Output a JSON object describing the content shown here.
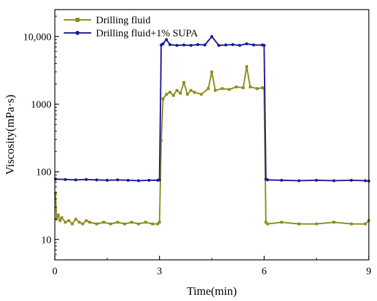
{
  "chart_data": {
    "type": "line",
    "title": "",
    "xlabel": "Time(min)",
    "ylabel": "Viscosity(mPa·s)",
    "xlim": [
      0,
      9
    ],
    "ylim": [
      5,
      25000
    ],
    "yscale": "log",
    "grid": false,
    "legend_position": "top-left",
    "x_ticks": [
      0,
      3,
      6,
      9
    ],
    "x_tick_labels": [
      "0",
      "3",
      "6",
      "9"
    ],
    "y_ticks": [
      10,
      100,
      1000,
      10000
    ],
    "y_tick_labels": [
      "10",
      "100",
      "1000",
      "10,000"
    ],
    "series": [
      {
        "name": "Drilling fluid",
        "color": "#8c8c1c",
        "marker": "square",
        "x": [
          0.02,
          0.05,
          0.1,
          0.15,
          0.2,
          0.3,
          0.4,
          0.5,
          0.6,
          0.7,
          0.8,
          0.9,
          1.0,
          1.2,
          1.4,
          1.6,
          1.8,
          2.0,
          2.2,
          2.4,
          2.6,
          2.8,
          2.95,
          3.0,
          3.05,
          3.1,
          3.2,
          3.3,
          3.4,
          3.5,
          3.6,
          3.7,
          3.8,
          3.9,
          4.0,
          4.2,
          4.4,
          4.5,
          4.6,
          4.8,
          5.0,
          5.2,
          5.4,
          5.5,
          5.6,
          5.8,
          5.95,
          6.0,
          6.05,
          6.1,
          6.5,
          7.0,
          7.5,
          8.0,
          8.5,
          8.9,
          9.0
        ],
        "values": [
          48,
          20,
          23,
          19,
          21,
          18,
          19,
          17,
          20,
          18,
          17,
          19,
          18,
          17,
          18,
          17,
          18,
          17,
          18,
          17,
          18,
          17,
          17,
          18,
          290,
          1200,
          1400,
          1500,
          1350,
          1600,
          1450,
          2100,
          1400,
          1600,
          1500,
          1400,
          1700,
          3000,
          1600,
          1700,
          1650,
          1800,
          1750,
          3600,
          1800,
          1700,
          1750,
          1700,
          18,
          17,
          18,
          17,
          17,
          18,
          17,
          17,
          19
        ]
      },
      {
        "name": "Drilling fluid+1% SUPA",
        "color": "#1c1c96",
        "marker": "circle",
        "x": [
          0.02,
          0.3,
          0.6,
          0.9,
          1.2,
          1.5,
          1.8,
          2.1,
          2.4,
          2.7,
          2.95,
          3.0,
          3.05,
          3.1,
          3.2,
          3.3,
          3.5,
          3.7,
          3.9,
          4.1,
          4.3,
          4.5,
          4.7,
          4.9,
          5.1,
          5.3,
          5.5,
          5.7,
          5.95,
          6.0,
          6.05,
          6.1,
          6.5,
          7.0,
          7.5,
          8.0,
          8.5,
          8.9,
          9.0
        ],
        "values": [
          78,
          77,
          76,
          77,
          76,
          75,
          76,
          75,
          74,
          75,
          75,
          76,
          7500,
          7800,
          9000,
          7600,
          7400,
          7500,
          7400,
          7600,
          7500,
          10000,
          7400,
          7500,
          7600,
          7400,
          7800,
          7500,
          7500,
          7400,
          78,
          76,
          75,
          74,
          75,
          74,
          75,
          74,
          73
        ]
      }
    ]
  }
}
